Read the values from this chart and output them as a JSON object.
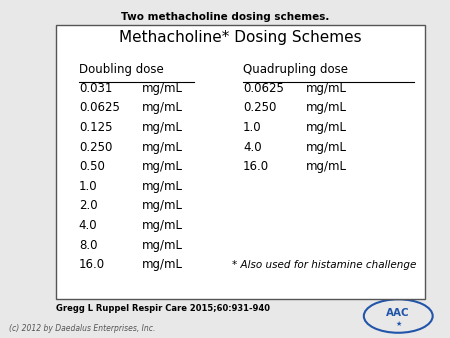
{
  "title": "Two methacholine dosing schemes.",
  "table_title": "Methacholine* Dosing Schemes",
  "col1_header": "Doubling dose",
  "col2_header": "Quadrupling dose",
  "doubling_values": [
    "0.031",
    "0.0625",
    "0.125",
    "0.250",
    "0.50",
    "1.0",
    "2.0",
    "4.0",
    "8.0",
    "16.0"
  ],
  "quadrupling_values": [
    "0.0625",
    "0.250",
    "1.0",
    "4.0",
    "16.0"
  ],
  "unit": "mg/mL",
  "footnote": "* Also used for histamine challenge",
  "citation": "Gregg L Ruppel Respir Care 2015;60:931-940",
  "copyright": "(c) 2012 by Daedalus Enterprises, Inc.",
  "bg_color": "#e8e8e8",
  "box_bg": "#ffffff",
  "box_edge": "#555555",
  "title_color": "#000000",
  "text_color": "#000000",
  "header_color": "#000000",
  "citation_color": "#000000",
  "copyright_color": "#555555",
  "logo_color": "#2255aa"
}
